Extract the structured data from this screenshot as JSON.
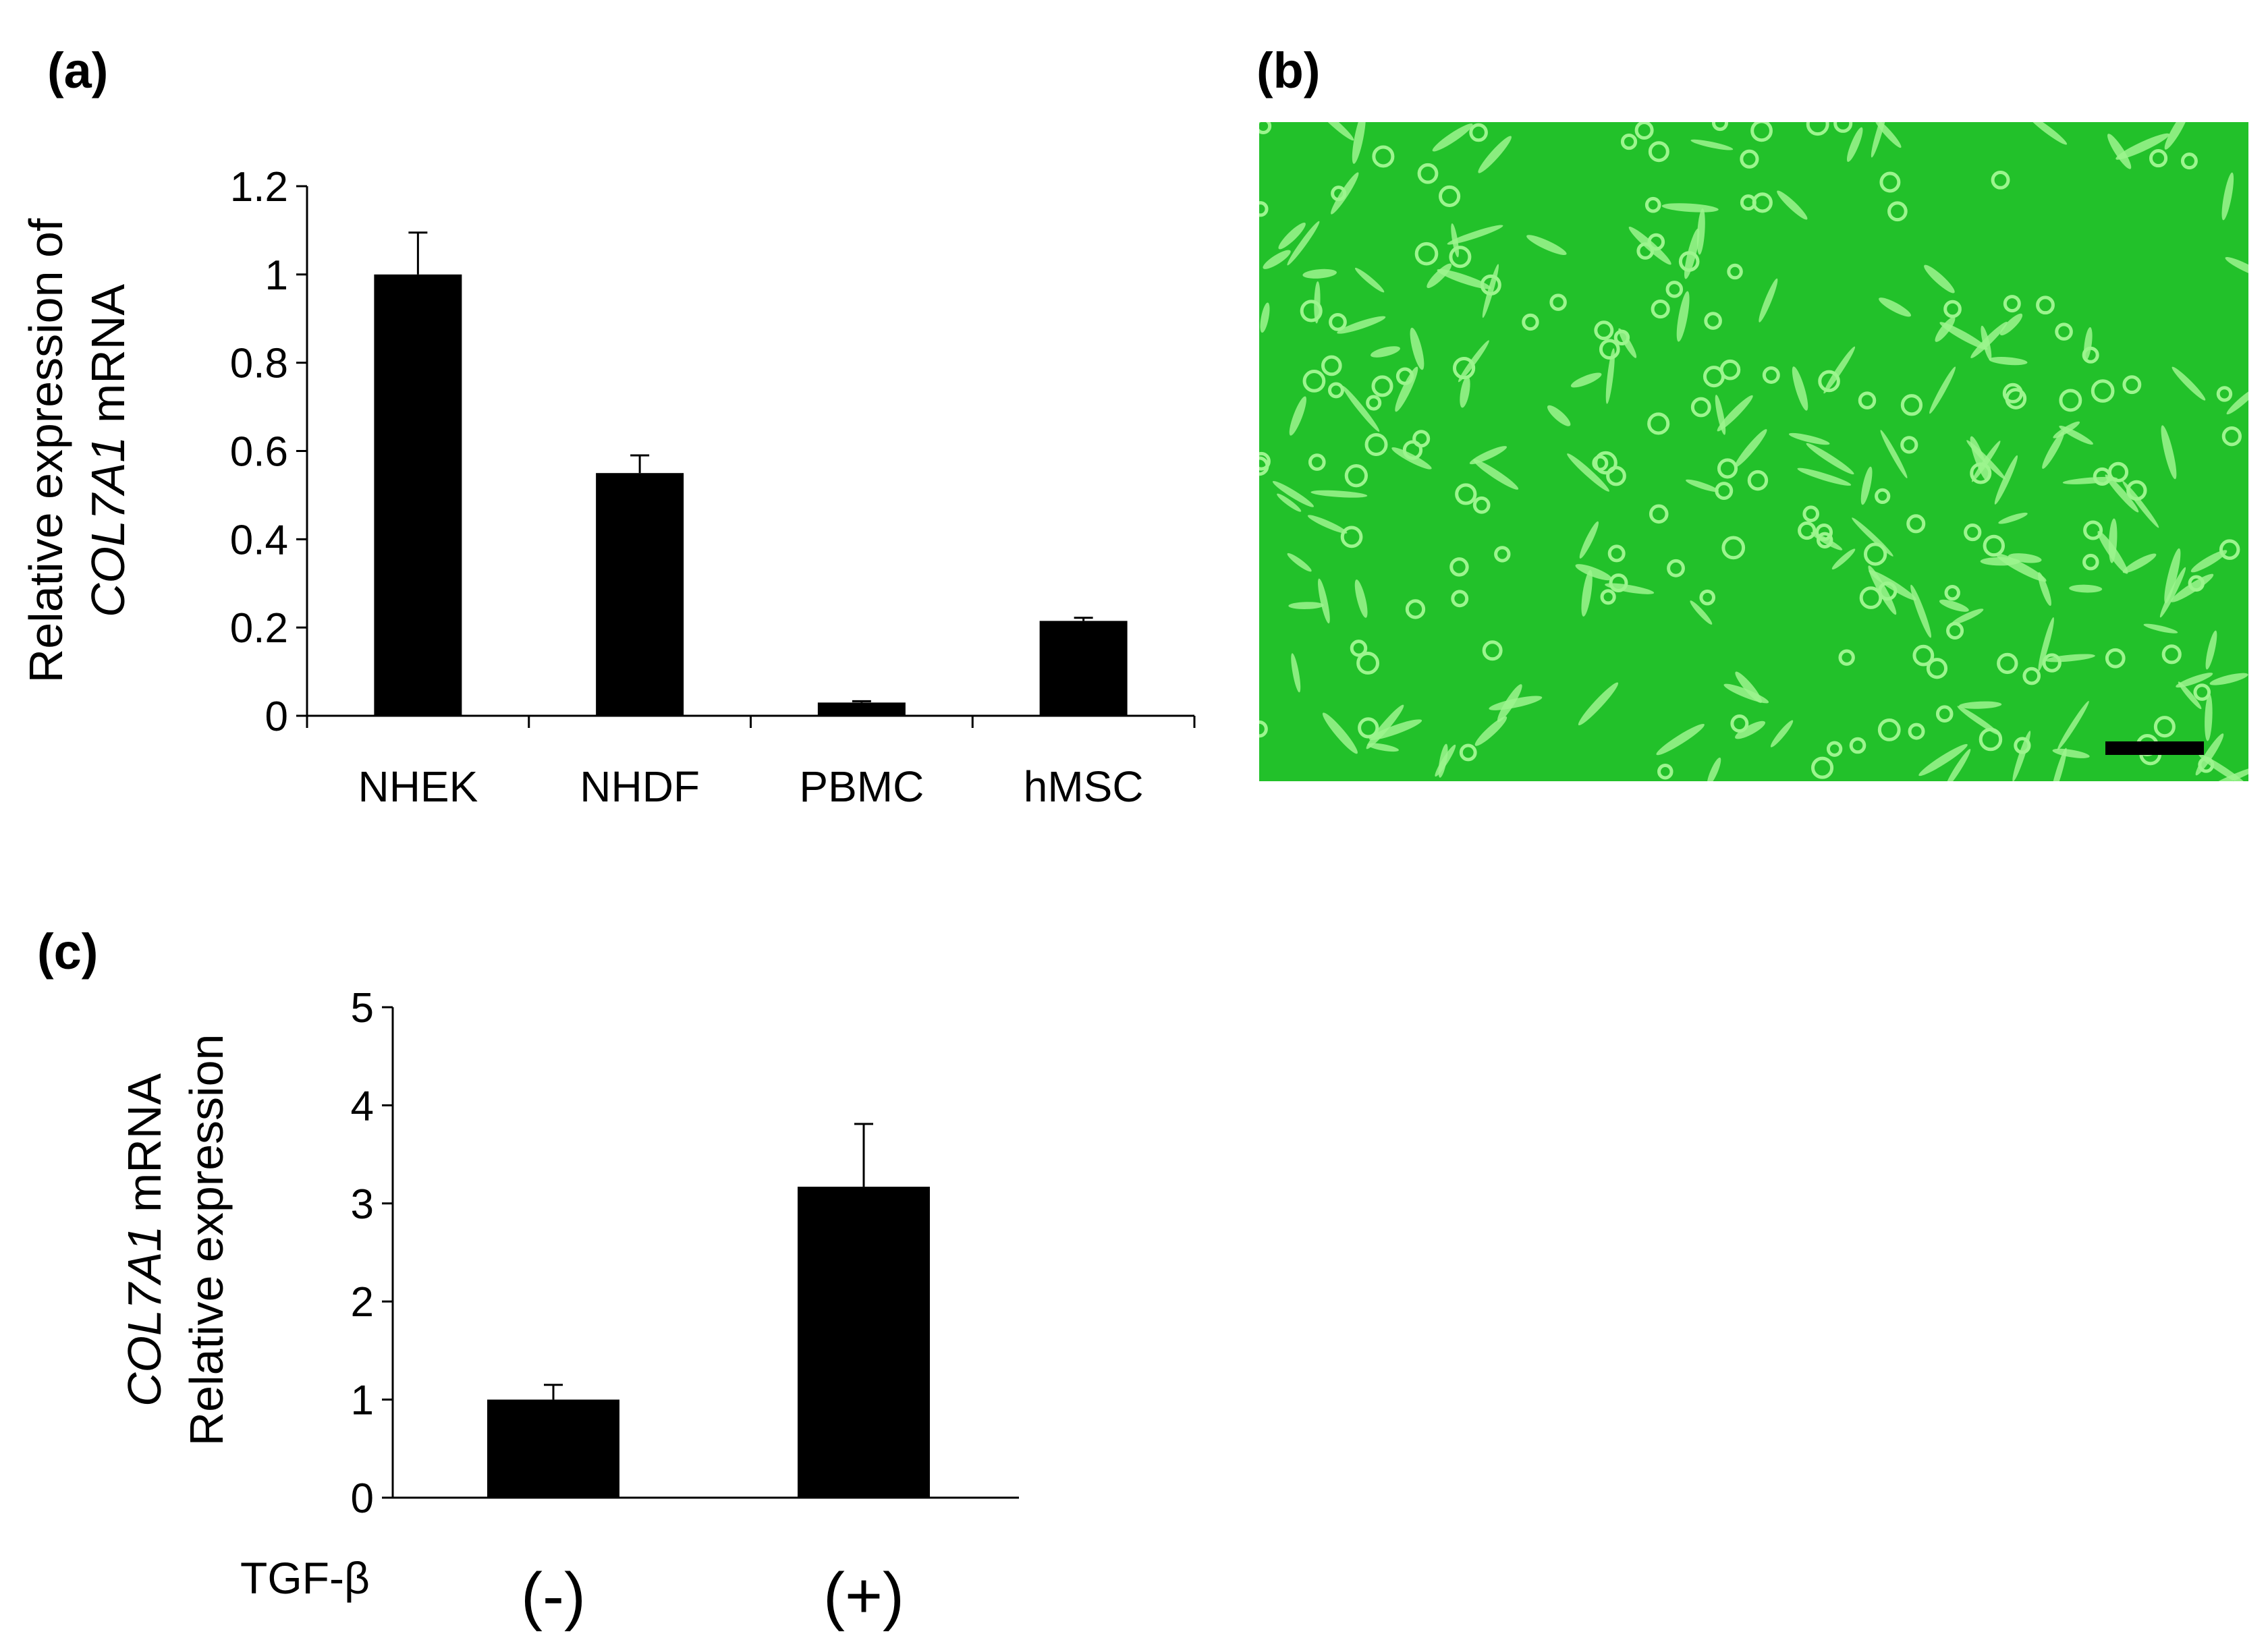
{
  "panels": {
    "a": {
      "label": "(a)"
    },
    "b": {
      "label": "(b)"
    },
    "c": {
      "label": "(c)"
    }
  },
  "chart_data": [
    {
      "id": "a",
      "type": "bar",
      "categories": [
        "NHEK",
        "NHDF",
        "PBMC",
        "hMSC"
      ],
      "values": [
        1.0,
        0.55,
        0.03,
        0.215
      ],
      "errors": [
        0.095,
        0.04,
        0.003,
        0.007
      ],
      "ylabel_lines": [
        [
          {
            "text": "Relative expression of",
            "italic": false
          }
        ],
        [
          {
            "text": "COL7A1",
            "italic": true
          },
          {
            "text": " mRNA",
            "italic": false
          }
        ]
      ],
      "xlabel": "",
      "yticks": [
        "0",
        "0.2",
        "0.4",
        "0.6",
        "0.8",
        "1",
        "1.2"
      ],
      "ylim": [
        0,
        1.2
      ],
      "bar_color": "#000000",
      "grid": false,
      "legend": "none"
    },
    {
      "id": "c",
      "type": "bar",
      "row_label": "TGF-β",
      "categories": [
        "(-)",
        "(+)"
      ],
      "values": [
        1.0,
        3.17
      ],
      "errors": [
        0.15,
        0.64
      ],
      "ylabel_lines": [
        [
          {
            "text": "COL7A1",
            "italic": true
          },
          {
            "text": " mRNA",
            "italic": false
          }
        ],
        [
          {
            "text": "Relative expression",
            "italic": false
          }
        ]
      ],
      "xlabel": "",
      "yticks": [
        "0",
        "1",
        "2",
        "3",
        "4",
        "5"
      ],
      "ylim": [
        0,
        5
      ],
      "bar_color": "#000000",
      "grid": false,
      "legend": "none"
    }
  ],
  "micrograph": {
    "background_color": "#22c12a",
    "cell_color": "#9cf58e",
    "scalebar_color": "#000000"
  }
}
